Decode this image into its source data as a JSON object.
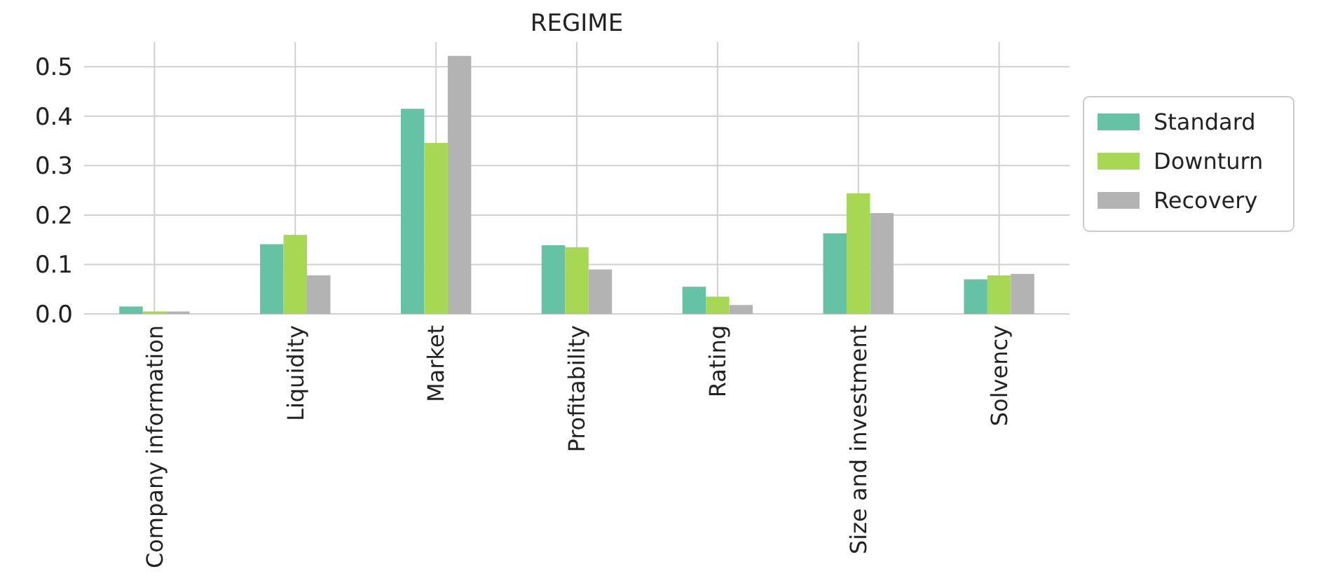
{
  "chart_data": {
    "type": "bar",
    "title": "REGIME",
    "categories": [
      "Company information",
      "Liquidity",
      "Market",
      "Profitability",
      "Rating",
      "Size and investment",
      "Solvency"
    ],
    "series": [
      {
        "name": "Standard",
        "color": "#66c2a5",
        "values": [
          0.015,
          0.141,
          0.415,
          0.139,
          0.055,
          0.163,
          0.07
        ]
      },
      {
        "name": "Downturn",
        "color": "#a6d854",
        "values": [
          0.005,
          0.16,
          0.346,
          0.135,
          0.035,
          0.244,
          0.078
        ]
      },
      {
        "name": "Recovery",
        "color": "#b3b3b3",
        "values": [
          0.005,
          0.078,
          0.522,
          0.09,
          0.018,
          0.204,
          0.081
        ]
      }
    ],
    "ylim": [
      0,
      0.55
    ],
    "yticks": [
      {
        "value": 0,
        "label": "0.0"
      },
      {
        "value": 0.1,
        "label": "0.1"
      },
      {
        "value": 0.2,
        "label": "0.2"
      },
      {
        "value": 0.3,
        "label": "0.3"
      },
      {
        "value": 0.4,
        "label": "0.4"
      },
      {
        "value": 0.5,
        "label": "0.5"
      }
    ],
    "grid": true,
    "legend": "right"
  }
}
